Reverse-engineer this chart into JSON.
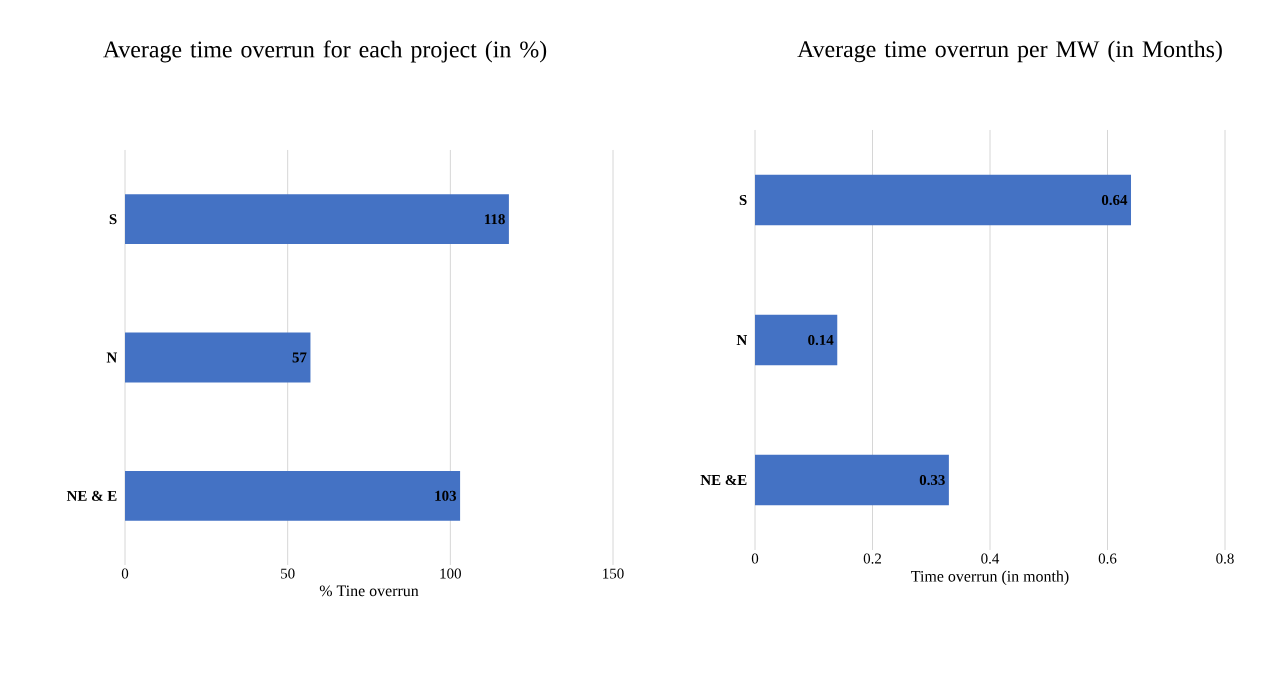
{
  "chart_data": [
    {
      "type": "bar",
      "orientation": "horizontal",
      "title": "Average time overrun for each project  (in %)",
      "xlabel": "% Tine overrun",
      "categories": [
        "S",
        "N",
        "NE & E"
      ],
      "values": [
        118,
        57,
        103
      ],
      "color": "#4472c4",
      "xlim": [
        0,
        150
      ],
      "xticks": [
        0,
        50,
        100,
        150
      ],
      "grid": "x",
      "data_labels": true
    },
    {
      "type": "bar",
      "orientation": "horizontal",
      "title": "Average time overrun per MW (in Months)",
      "xlabel": "Time overrun (in month)",
      "categories": [
        "S",
        "N",
        "NE &E"
      ],
      "values": [
        0.64,
        0.14,
        0.33
      ],
      "color": "#4472c4",
      "xlim": [
        0,
        0.8
      ],
      "xticks": [
        0,
        0.2,
        0.4,
        0.6,
        0.8
      ],
      "grid": "x",
      "data_labels": true
    }
  ]
}
